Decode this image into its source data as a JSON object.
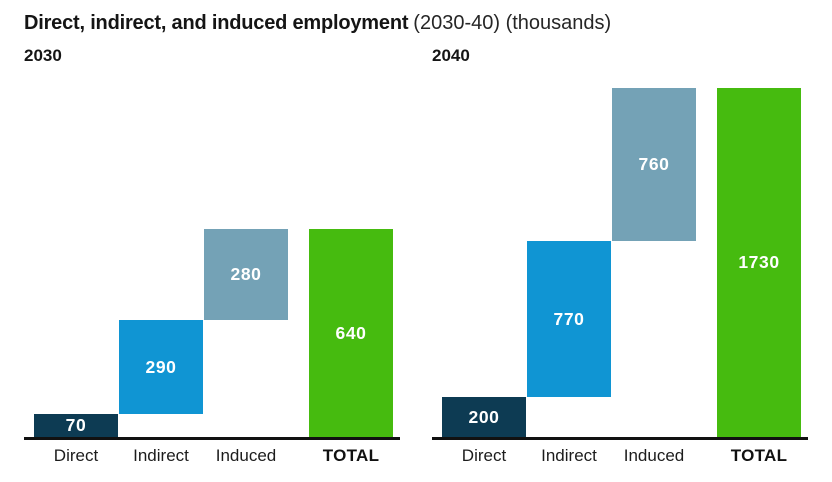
{
  "title": {
    "bold": "Direct, indirect, and induced employment",
    "suffix": "(2030-40) (thousands)"
  },
  "colors": {
    "series": [
      "#0D3B53",
      "#1095D3",
      "#74A2B6",
      "#46BB0F"
    ],
    "axis": "#111111",
    "value_label": "#FFFFFF"
  },
  "chart_data": [
    {
      "type": "bar",
      "subtype": "waterfall",
      "title": "2030",
      "categories": [
        "Direct",
        "Indirect",
        "Induced",
        "TOTAL"
      ],
      "values": [
        70,
        290,
        280,
        640
      ],
      "cumulative_starts": [
        0,
        70,
        360,
        0
      ],
      "ylim": [
        0,
        640
      ],
      "grid": false,
      "legend": "none",
      "value_labels_inside_bars": true
    },
    {
      "type": "bar",
      "subtype": "waterfall",
      "title": "2040",
      "categories": [
        "Direct",
        "Indirect",
        "Induced",
        "TOTAL"
      ],
      "values": [
        200,
        770,
        760,
        1730
      ],
      "cumulative_starts": [
        0,
        200,
        970,
        0
      ],
      "ylim": [
        0,
        1730
      ],
      "grid": false,
      "legend": "none",
      "value_labels_inside_bars": true
    }
  ]
}
